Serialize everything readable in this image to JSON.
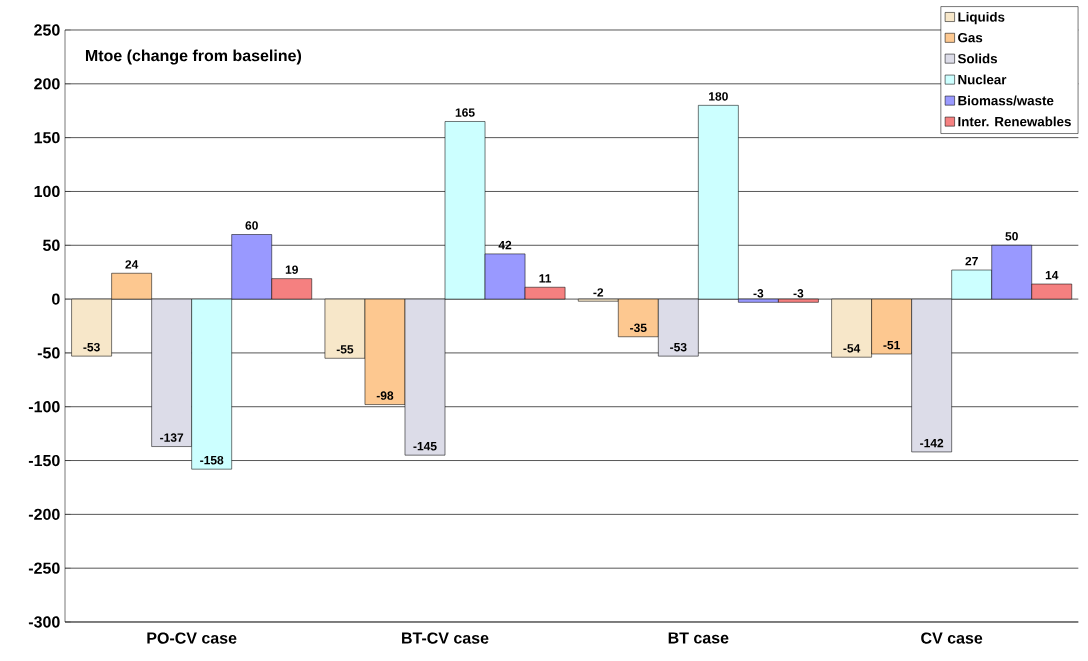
{
  "chart_data": {
    "type": "bar",
    "ylabel": "Mtoe (change from baseline)",
    "categories": [
      "PO-CV case",
      "BT-CV case",
      "BT case",
      "CV case"
    ],
    "series": [
      {
        "name": "Liquids",
        "color": "#f7e7c9",
        "values": [
          -53,
          -55,
          -2,
          -54
        ]
      },
      {
        "name": "Gas",
        "color": "#fdc890",
        "values": [
          24,
          -98,
          -35,
          -51
        ]
      },
      {
        "name": "Solids",
        "color": "#dcdce8",
        "values": [
          -137,
          -145,
          -53,
          -142
        ]
      },
      {
        "name": "Nuclear",
        "color": "#ccffff",
        "values": [
          -158,
          165,
          180,
          27
        ]
      },
      {
        "name": "Biomass/waste",
        "color": "#9999ff",
        "values": [
          60,
          42,
          -3,
          50
        ]
      },
      {
        "name": "Inter. Renewables",
        "color": "#f58080",
        "values": [
          19,
          11,
          -3,
          14
        ]
      }
    ],
    "ylim": [
      -300,
      250
    ],
    "yticks": [
      -300,
      -250,
      -200,
      -150,
      -100,
      -50,
      0,
      50,
      100,
      150,
      200,
      250
    ],
    "grid": "y",
    "legend": "top right",
    "data_labels": true
  }
}
